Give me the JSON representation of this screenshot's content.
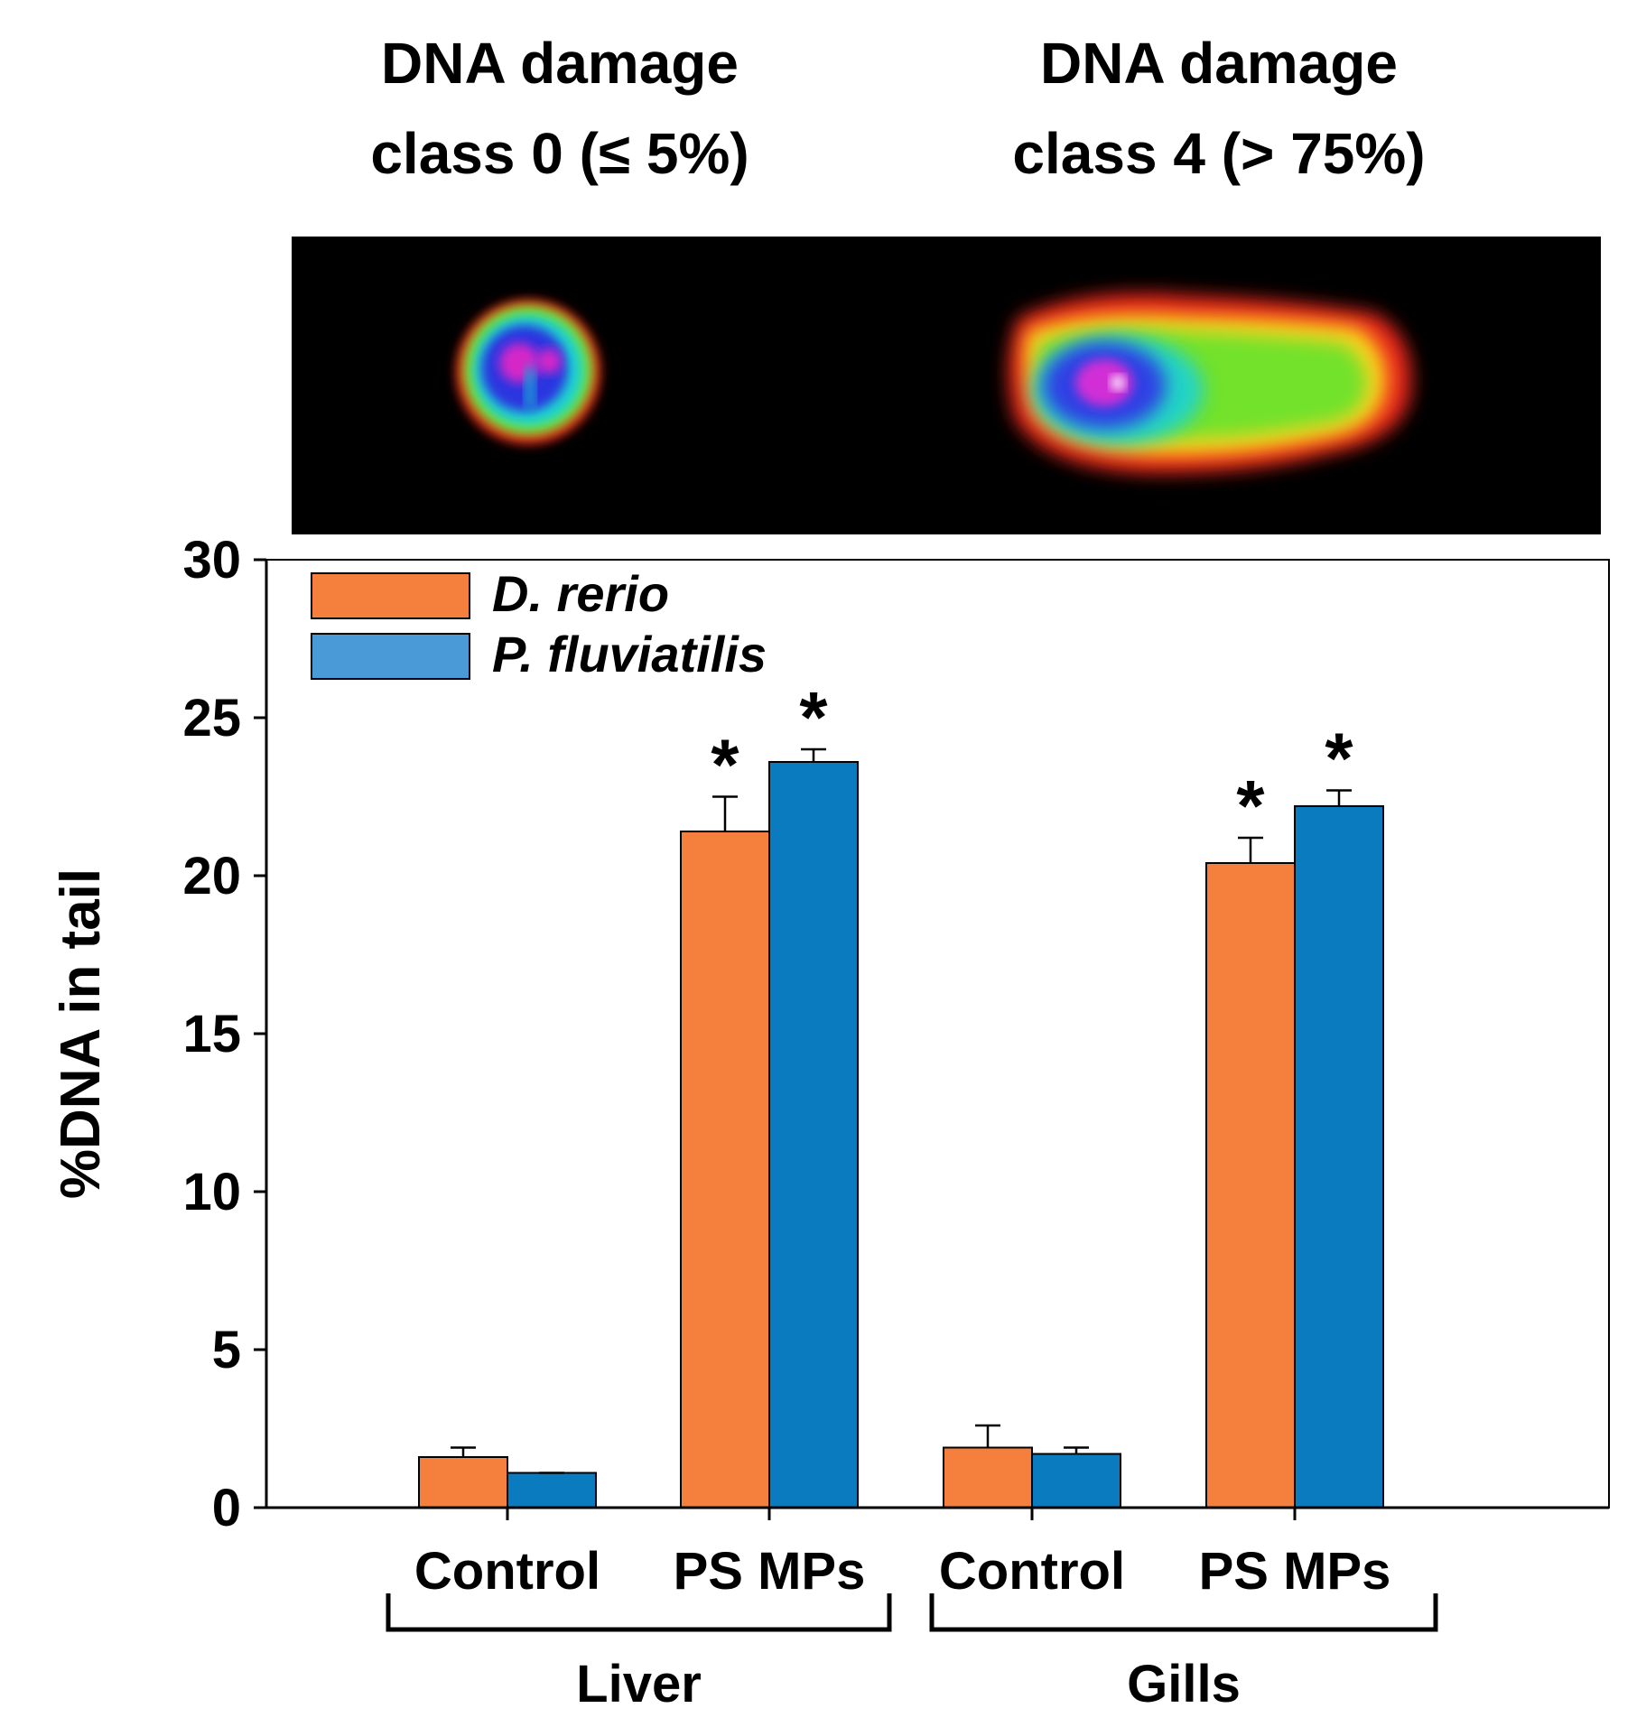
{
  "panel_labels": {
    "left": {
      "line1": "DNA damage",
      "line2": "class 0 (≤ 5%)"
    },
    "right": {
      "line1": "DNA damage",
      "line2": "class 4 (> 75%)"
    }
  },
  "colors": {
    "d_rerio": "#f5803e",
    "p_fluviatilis": "#0a7bbf",
    "p_fluviatilis_legend": "#4a9ad8",
    "axis": "#000000"
  },
  "chart_data": {
    "type": "bar",
    "ylabel": "%DNA in tail",
    "xlabel": "",
    "ylim": [
      0,
      30
    ],
    "yticks": [
      0,
      5,
      10,
      15,
      20,
      25,
      30
    ],
    "categories": [
      "Control",
      "PS MPs",
      "Control",
      "PS MPs"
    ],
    "groups": [
      {
        "label": "Liver",
        "categories": [
          "Control",
          "PS MPs"
        ]
      },
      {
        "label": "Gills",
        "categories": [
          "Control",
          "PS MPs"
        ]
      }
    ],
    "legend": [
      "D. rerio",
      "P. fluviatilis"
    ],
    "series": [
      {
        "name": "D. rerio",
        "values": [
          1.6,
          21.4,
          1.9,
          20.4
        ],
        "errors": [
          0.3,
          1.1,
          0.7,
          0.8
        ],
        "significance": [
          "",
          "*",
          "",
          "*"
        ]
      },
      {
        "name": "P. fluviatilis",
        "values": [
          1.1,
          23.6,
          1.7,
          22.2
        ],
        "errors": [
          0.0,
          0.4,
          0.2,
          0.5
        ],
        "significance": [
          "",
          "*",
          "",
          "*"
        ]
      }
    ]
  }
}
